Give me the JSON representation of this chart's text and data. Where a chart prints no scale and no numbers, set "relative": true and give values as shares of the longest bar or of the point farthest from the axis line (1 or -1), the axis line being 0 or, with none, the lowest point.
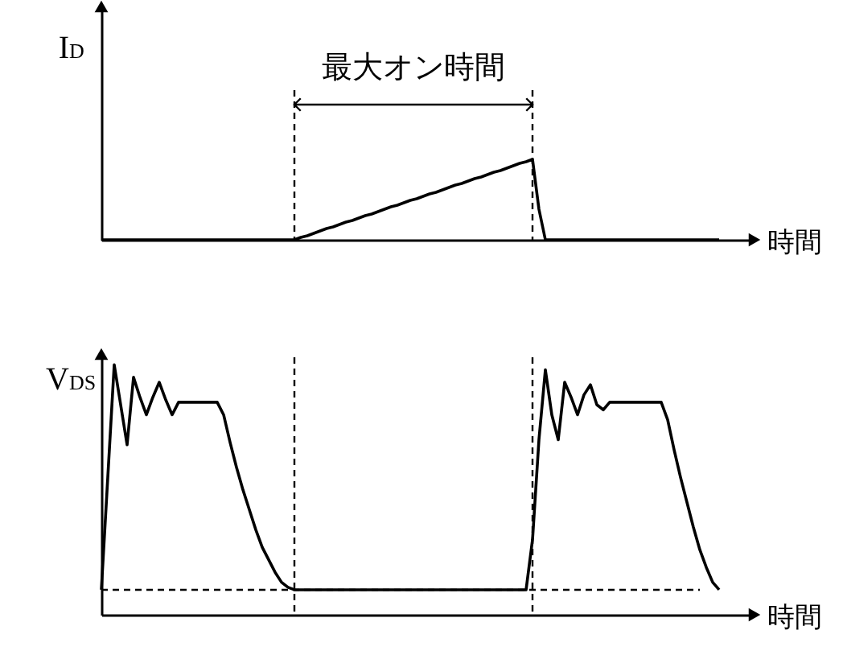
{
  "chart_data": [
    {
      "type": "line",
      "ylabel": "I$_{D}$",
      "xlabel": "時間",
      "relative": true,
      "tick_labels": false,
      "grid": false,
      "marker": "none",
      "line_style": "solid",
      "categories": [
        null,
        null,
        null,
        null,
        null,
        null,
        null,
        null,
        null,
        null,
        null,
        null,
        null,
        null,
        null,
        null,
        null,
        null,
        null,
        null,
        null,
        null,
        null,
        null,
        null,
        null,
        null,
        null,
        null,
        null,
        null,
        null,
        null,
        null,
        null,
        null,
        null,
        null,
        null,
        null,
        null,
        null,
        null,
        null,
        null,
        null,
        null,
        null,
        null,
        null,
        null,
        null,
        null,
        null,
        null,
        null,
        null,
        null,
        null,
        null,
        null,
        null,
        null,
        null,
        null,
        null,
        null,
        null,
        null,
        null,
        null,
        null,
        null,
        null,
        null,
        null,
        null,
        null,
        null,
        null,
        null,
        null,
        null,
        null,
        null,
        null,
        null,
        null,
        null,
        null,
        null,
        null,
        null,
        null,
        null,
        null,
        null
      ],
      "series": [
        {
          "color": "#000000",
          "values": [
            0,
            0,
            0,
            0,
            0,
            0,
            0,
            0,
            0,
            0,
            0,
            0,
            0,
            0,
            0,
            0,
            0,
            0,
            0,
            0,
            0,
            0,
            0,
            0,
            0,
            0,
            0,
            0,
            0,
            0,
            0,
            0.03,
            0.05,
            0.08,
            0.11,
            0.14,
            0.16,
            0.19,
            0.22,
            0.24,
            0.27,
            0.3,
            0.32,
            0.35,
            0.38,
            0.41,
            0.43,
            0.46,
            0.49,
            0.51,
            0.54,
            0.57,
            0.59,
            0.62,
            0.65,
            0.68,
            0.7,
            0.73,
            0.76,
            0.78,
            0.81,
            0.84,
            0.86,
            0.89,
            0.92,
            0.95,
            0.97,
            1,
            0.38,
            0,
            0,
            0,
            0,
            0,
            0,
            0,
            0,
            0,
            0,
            0,
            0,
            0,
            0,
            0,
            0,
            0,
            0,
            0,
            0,
            0,
            0,
            0,
            0,
            0,
            0,
            0,
            0
          ]
        }
      ],
      "annotations": [
        "最大オン時間"
      ]
    },
    {
      "type": "line",
      "ylabel": "V$_{DS}$",
      "xlabel": "時間",
      "relative": true,
      "tick_labels": false,
      "grid": false,
      "marker": "none",
      "line_style": "solid",
      "categories": [
        null,
        null,
        null,
        null,
        null,
        null,
        null,
        null,
        null,
        null,
        null,
        null,
        null,
        null,
        null,
        null,
        null,
        null,
        null,
        null,
        null,
        null,
        null,
        null,
        null,
        null,
        null,
        null,
        null,
        null,
        null,
        null,
        null,
        null,
        null,
        null,
        null,
        null,
        null,
        null,
        null,
        null,
        null,
        null,
        null,
        null,
        null,
        null,
        null,
        null,
        null,
        null,
        null,
        null,
        null,
        null,
        null,
        null,
        null,
        null,
        null,
        null,
        null,
        null,
        null,
        null,
        null,
        null,
        null,
        null,
        null,
        null,
        null,
        null,
        null,
        null,
        null,
        null,
        null,
        null,
        null,
        null,
        null,
        null,
        null,
        null,
        null,
        null,
        null,
        null,
        null,
        null,
        null,
        null,
        null,
        null,
        null
      ],
      "series": [
        {
          "color": "#000000",
          "values": [
            0.1,
            0.55,
            1,
            0.84,
            0.68,
            0.95,
            0.87,
            0.8,
            0.87,
            0.93,
            0.86,
            0.8,
            0.85,
            0.85,
            0.85,
            0.85,
            0.85,
            0.85,
            0.85,
            0.8,
            0.69,
            0.59,
            0.5,
            0.42,
            0.34,
            0.27,
            0.22,
            0.17,
            0.13,
            0.11,
            0.1,
            0.1,
            0.1,
            0.1,
            0.1,
            0.1,
            0.1,
            0.1,
            0.1,
            0.1,
            0.1,
            0.1,
            0.1,
            0.1,
            0.1,
            0.1,
            0.1,
            0.1,
            0.1,
            0.1,
            0.1,
            0.1,
            0.1,
            0.1,
            0.1,
            0.1,
            0.1,
            0.1,
            0.1,
            0.1,
            0.1,
            0.1,
            0.1,
            0.1,
            0.1,
            0.1,
            0.1,
            0.3,
            0.7,
            0.98,
            0.8,
            0.7,
            0.93,
            0.87,
            0.8,
            0.88,
            0.92,
            0.84,
            0.82,
            0.85,
            0.85,
            0.85,
            0.85,
            0.85,
            0.85,
            0.85,
            0.85,
            0.85,
            0.78,
            0.66,
            0.55,
            0.45,
            0.35,
            0.26,
            0.19,
            0.13,
            0.1
          ]
        }
      ],
      "ref_lines": [
        {
          "axis": "y",
          "value": 0.1,
          "color": "#000000",
          "line_style": "dashed"
        }
      ]
    }
  ]
}
